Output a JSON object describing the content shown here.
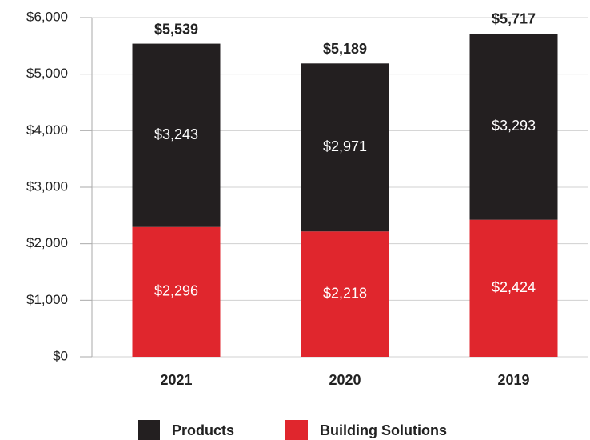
{
  "chart_data": {
    "type": "stacked_bar",
    "categories": [
      "2021",
      "2020",
      "2019"
    ],
    "series": [
      {
        "name": "Products",
        "color": "#231f20",
        "values": [
          3243,
          2971,
          3293
        ],
        "value_labels": [
          "$3,243",
          "$2,971",
          "$3,293"
        ]
      },
      {
        "name": "Building Solutions",
        "color": "#e0262d",
        "values": [
          2296,
          2218,
          2424
        ],
        "value_labels": [
          "$2,296",
          "$2,218",
          "$2,424"
        ]
      }
    ],
    "totals": [
      5539,
      5189,
      5717
    ],
    "total_labels": [
      "$5,539",
      "$5,189",
      "$5,717"
    ],
    "ylim": [
      0,
      6000
    ],
    "yticks": [
      {
        "value": 0,
        "label": "$0"
      },
      {
        "value": 1000,
        "label": "$1,000"
      },
      {
        "value": 2000,
        "label": "$2,000"
      },
      {
        "value": 3000,
        "label": "$3,000"
      },
      {
        "value": 4000,
        "label": "$4,000"
      },
      {
        "value": 5000,
        "label": "$5,000"
      },
      {
        "value": 6000,
        "label": "$6,000"
      }
    ],
    "grid": true
  }
}
